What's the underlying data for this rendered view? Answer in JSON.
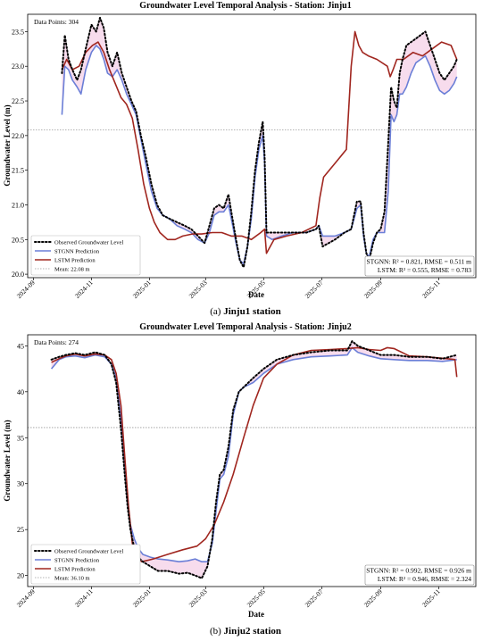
{
  "colors": {
    "observed": "#000000",
    "stgnn": "#6b7fd7",
    "lstm": "#a0261f",
    "mean": "#9a9a9a",
    "shade": "#f4cde6"
  },
  "chart_data": [
    {
      "type": "line",
      "title": "Groundwater Level Temporal Analysis - Station: Jinju1",
      "xlabel": "Date",
      "ylabel": "Groundwater Level (m)",
      "caption_letter": "(a)",
      "caption_text": "Jinju1 station",
      "data_points_label": "Data Points: 304",
      "xlim": [
        "2024-08-26",
        "2025-12-10"
      ],
      "ylim": [
        19.95,
        23.75
      ],
      "x_ticks": [
        "2024-09",
        "2024-11",
        "2025-01",
        "2025-03",
        "2025-05",
        "2025-07",
        "2025-09",
        "2025-11"
      ],
      "y_ticks": [
        20.0,
        20.5,
        21.0,
        21.5,
        22.0,
        22.5,
        23.0,
        23.5
      ],
      "y_tick_labels": [
        "20.0",
        "20.5",
        "21.0",
        "21.5",
        "22.0",
        "22.5",
        "23.0",
        "23.5"
      ],
      "mean": 22.08,
      "legend_position": "lower-left",
      "legend": [
        "Observed Groundwater Level",
        "STGNN Prediction",
        "LSTM Prediction",
        "Mean: 22.08 m"
      ],
      "metrics": [
        "STGNN: R² = 0.821, RMSE = 0.511 m",
        "LSTM: R² = 0.555, RMSE = 0.783"
      ],
      "series": [
        {
          "name": "Observed Groundwater Level",
          "x": [
            "2024-10-01",
            "2024-10-04",
            "2024-10-08",
            "2024-10-12",
            "2024-10-17",
            "2024-10-21",
            "2024-10-26",
            "2024-11-01",
            "2024-11-06",
            "2024-11-10",
            "2024-11-14",
            "2024-11-18",
            "2024-11-23",
            "2024-11-28",
            "2024-12-03",
            "2024-12-08",
            "2024-12-13",
            "2024-12-18",
            "2024-12-23",
            "2024-12-28",
            "2025-01-03",
            "2025-01-09",
            "2025-01-15",
            "2025-01-22",
            "2025-01-30",
            "2025-02-07",
            "2025-02-14",
            "2025-02-21",
            "2025-02-28",
            "2025-03-05",
            "2025-03-10",
            "2025-03-15",
            "2025-03-20",
            "2025-03-25",
            "2025-03-28",
            "2025-04-02",
            "2025-04-06",
            "2025-04-10",
            "2025-04-14",
            "2025-04-18",
            "2025-04-22",
            "2025-04-26",
            "2025-04-30",
            "2025-05-02",
            "2025-05-04",
            "2025-05-10",
            "2025-05-20",
            "2025-06-01",
            "2025-06-15",
            "2025-06-25",
            "2025-06-28",
            "2025-07-02",
            "2025-07-15",
            "2025-07-25",
            "2025-08-01",
            "2025-08-07",
            "2025-08-11",
            "2025-08-14",
            "2025-08-17",
            "2025-08-20",
            "2025-08-24",
            "2025-08-28",
            "2025-09-01",
            "2025-09-05",
            "2025-09-09",
            "2025-09-12",
            "2025-09-15",
            "2025-09-18",
            "2025-09-21",
            "2025-09-24",
            "2025-09-28",
            "2025-10-03",
            "2025-10-08",
            "2025-10-13",
            "2025-10-18",
            "2025-10-23",
            "2025-10-28",
            "2025-11-02",
            "2025-11-07",
            "2025-11-12",
            "2025-11-17",
            "2025-11-20"
          ],
          "values": [
            22.9,
            23.45,
            23.1,
            22.95,
            22.8,
            22.95,
            23.25,
            23.6,
            23.5,
            23.7,
            23.55,
            23.2,
            23.0,
            23.2,
            22.9,
            22.7,
            22.5,
            22.35,
            22.0,
            21.7,
            21.3,
            21.0,
            20.85,
            20.8,
            20.75,
            20.7,
            20.65,
            20.55,
            20.45,
            20.7,
            20.95,
            21.0,
            20.95,
            21.15,
            20.9,
            20.5,
            20.2,
            20.1,
            20.4,
            20.9,
            21.5,
            21.9,
            22.2,
            21.7,
            20.6,
            20.6,
            20.6,
            20.6,
            20.6,
            20.65,
            20.7,
            20.4,
            20.5,
            20.6,
            20.65,
            21.05,
            21.05,
            20.6,
            20.3,
            20.2,
            20.45,
            20.6,
            20.65,
            20.9,
            21.9,
            22.7,
            22.5,
            22.4,
            22.9,
            23.1,
            23.3,
            23.35,
            23.4,
            23.45,
            23.5,
            23.3,
            23.1,
            22.9,
            22.8,
            22.9,
            23.0,
            23.1
          ]
        },
        {
          "name": "STGNN Prediction",
          "x": [
            "2024-10-01",
            "2024-10-04",
            "2024-10-08",
            "2024-10-12",
            "2024-10-17",
            "2024-10-21",
            "2024-10-26",
            "2024-11-01",
            "2024-11-06",
            "2024-11-10",
            "2024-11-14",
            "2024-11-18",
            "2024-11-23",
            "2024-11-28",
            "2024-12-03",
            "2024-12-08",
            "2024-12-13",
            "2024-12-18",
            "2024-12-23",
            "2024-12-28",
            "2025-01-03",
            "2025-01-09",
            "2025-01-15",
            "2025-01-22",
            "2025-01-30",
            "2025-02-07",
            "2025-02-14",
            "2025-02-21",
            "2025-02-28",
            "2025-03-05",
            "2025-03-10",
            "2025-03-15",
            "2025-03-20",
            "2025-03-25",
            "2025-03-28",
            "2025-04-02",
            "2025-04-06",
            "2025-04-10",
            "2025-04-14",
            "2025-04-18",
            "2025-04-22",
            "2025-04-26",
            "2025-04-30",
            "2025-05-02",
            "2025-05-04",
            "2025-05-10",
            "2025-05-20",
            "2025-06-01",
            "2025-06-15",
            "2025-06-25",
            "2025-06-28",
            "2025-07-02",
            "2025-07-15",
            "2025-07-25",
            "2025-08-01",
            "2025-08-07",
            "2025-08-11",
            "2025-08-14",
            "2025-08-17",
            "2025-08-20",
            "2025-08-24",
            "2025-08-28",
            "2025-09-01",
            "2025-09-05",
            "2025-09-09",
            "2025-09-12",
            "2025-09-15",
            "2025-09-18",
            "2025-09-21",
            "2025-09-24",
            "2025-09-28",
            "2025-10-03",
            "2025-10-08",
            "2025-10-13",
            "2025-10-18",
            "2025-10-23",
            "2025-10-28",
            "2025-11-02",
            "2025-11-07",
            "2025-11-12",
            "2025-11-17",
            "2025-11-20"
          ],
          "values": [
            22.3,
            23.0,
            22.95,
            22.8,
            22.7,
            22.6,
            22.95,
            23.2,
            23.3,
            23.25,
            23.1,
            22.9,
            22.85,
            22.95,
            22.8,
            22.6,
            22.45,
            22.3,
            21.95,
            21.6,
            21.2,
            20.95,
            20.85,
            20.8,
            20.7,
            20.65,
            20.6,
            20.5,
            20.45,
            20.6,
            20.85,
            20.9,
            20.9,
            21.0,
            20.8,
            20.45,
            20.2,
            20.15,
            20.4,
            20.8,
            21.4,
            21.8,
            22.0,
            21.6,
            20.55,
            20.5,
            20.55,
            20.6,
            20.6,
            20.65,
            20.7,
            20.55,
            20.55,
            20.6,
            20.65,
            20.95,
            21.0,
            20.55,
            20.3,
            20.25,
            20.5,
            20.6,
            20.6,
            20.6,
            21.2,
            22.3,
            22.2,
            22.3,
            22.6,
            22.6,
            22.7,
            22.9,
            23.05,
            23.1,
            23.15,
            23.0,
            22.8,
            22.65,
            22.6,
            22.65,
            22.75,
            22.85
          ]
        },
        {
          "name": "LSTM Prediction",
          "x": [
            "2024-10-01",
            "2024-10-06",
            "2024-10-12",
            "2024-10-19",
            "2024-10-26",
            "2024-11-02",
            "2024-11-08",
            "2024-11-14",
            "2024-11-20",
            "2024-11-26",
            "2024-12-02",
            "2024-12-08",
            "2024-12-14",
            "2024-12-20",
            "2024-12-26",
            "2025-01-01",
            "2025-01-06",
            "2025-01-12",
            "2025-01-20",
            "2025-01-28",
            "2025-02-05",
            "2025-02-15",
            "2025-02-25",
            "2025-03-08",
            "2025-03-18",
            "2025-03-28",
            "2025-04-08",
            "2025-04-18",
            "2025-04-28",
            "2025-05-02",
            "2025-05-04",
            "2025-05-12",
            "2025-05-25",
            "2025-06-10",
            "2025-06-25",
            "2025-06-29",
            "2025-07-03",
            "2025-07-15",
            "2025-07-27",
            "2025-08-01",
            "2025-08-05",
            "2025-08-09",
            "2025-08-13",
            "2025-08-19",
            "2025-08-28",
            "2025-09-08",
            "2025-09-11",
            "2025-09-14",
            "2025-09-18",
            "2025-09-25",
            "2025-10-05",
            "2025-10-15",
            "2025-10-25",
            "2025-11-04",
            "2025-11-14",
            "2025-11-20"
          ],
          "values": [
            22.95,
            23.1,
            22.95,
            23.0,
            23.2,
            23.3,
            23.35,
            23.2,
            22.95,
            22.75,
            22.55,
            22.45,
            22.25,
            21.8,
            21.3,
            20.95,
            20.75,
            20.6,
            20.5,
            20.5,
            20.55,
            20.58,
            20.58,
            20.6,
            20.6,
            20.55,
            20.55,
            20.5,
            20.6,
            20.65,
            20.3,
            20.5,
            20.55,
            20.6,
            20.7,
            21.1,
            21.4,
            21.6,
            21.8,
            23.0,
            23.5,
            23.3,
            23.2,
            23.15,
            23.1,
            23.0,
            22.85,
            22.95,
            23.1,
            23.1,
            23.2,
            23.15,
            23.25,
            23.35,
            23.3,
            23.1
          ]
        }
      ]
    },
    {
      "type": "line",
      "title": "Groundwater Level Temporal Analysis - Station: Jinju2",
      "xlabel": "Date",
      "ylabel": "Groundwater Level (m)",
      "caption_letter": "(b)",
      "caption_text": "Jinju2 station",
      "data_points_label": "Data Points: 274",
      "xlim": [
        "2024-08-26",
        "2025-12-10"
      ],
      "ylim": [
        18.8,
        46.2
      ],
      "x_ticks": [
        "2024-09",
        "2024-11",
        "2025-01",
        "2025-03",
        "2025-05",
        "2025-07",
        "2025-09",
        "2025-11"
      ],
      "y_ticks": [
        20,
        25,
        30,
        35,
        40,
        45
      ],
      "y_tick_labels": [
        "20",
        "25",
        "30",
        "35",
        "40",
        "45"
      ],
      "mean": 36.1,
      "legend_position": "lower-left",
      "legend": [
        "Observed Groundwater Level",
        "STGNN Prediction",
        "LSTM Prediction",
        "Mean: 36.10 m"
      ],
      "metrics": [
        "STGNN: R² = 0.992, RMSE = 0.926 m",
        "LSTM: R² = 0.946, RMSE = 2.324"
      ],
      "series": [
        {
          "name": "Observed Groundwater Level",
          "x": [
            "2024-09-20",
            "2024-09-28",
            "2024-10-05",
            "2024-10-15",
            "2024-10-25",
            "2024-11-05",
            "2024-11-15",
            "2024-11-22",
            "2024-11-27",
            "2024-12-02",
            "2024-12-06",
            "2024-12-09",
            "2024-12-12",
            "2024-12-16",
            "2024-12-20",
            "2024-12-25",
            "2025-01-02",
            "2025-01-10",
            "2025-01-20",
            "2025-02-01",
            "2025-02-10",
            "2025-02-18",
            "2025-02-25",
            "2025-03-03",
            "2025-03-08",
            "2025-03-12",
            "2025-03-16",
            "2025-03-20",
            "2025-03-25",
            "2025-03-30",
            "2025-04-05",
            "2025-04-10",
            "2025-04-20",
            "2025-05-01",
            "2025-05-15",
            "2025-06-01",
            "2025-06-20",
            "2025-07-10",
            "2025-07-28",
            "2025-08-02",
            "2025-08-08",
            "2025-08-20",
            "2025-09-01",
            "2025-09-15",
            "2025-10-01",
            "2025-10-20",
            "2025-11-05",
            "2025-11-20"
          ],
          "values": [
            43.5,
            43.8,
            44.0,
            44.2,
            44.0,
            44.3,
            44.0,
            43.0,
            41.0,
            36.0,
            31.0,
            27.5,
            25.0,
            23.0,
            22.0,
            21.5,
            21.0,
            20.5,
            20.5,
            20.2,
            20.3,
            20.0,
            19.7,
            21.0,
            24.0,
            28.0,
            31.0,
            31.5,
            34.0,
            38.0,
            40.0,
            40.5,
            41.5,
            42.5,
            43.5,
            44.0,
            44.3,
            44.5,
            44.5,
            45.5,
            45.0,
            44.5,
            44.0,
            44.0,
            43.8,
            43.8,
            43.6,
            44.0
          ]
        },
        {
          "name": "STGNN Prediction",
          "x": [
            "2024-09-20",
            "2024-09-28",
            "2024-10-05",
            "2024-10-15",
            "2024-10-25",
            "2024-11-05",
            "2024-11-15",
            "2024-11-22",
            "2024-11-27",
            "2024-12-02",
            "2024-12-06",
            "2024-12-09",
            "2024-12-12",
            "2024-12-16",
            "2024-12-20",
            "2024-12-25",
            "2025-01-02",
            "2025-01-10",
            "2025-01-20",
            "2025-02-01",
            "2025-02-10",
            "2025-02-18",
            "2025-02-25",
            "2025-03-03",
            "2025-03-08",
            "2025-03-12",
            "2025-03-16",
            "2025-03-20",
            "2025-03-25",
            "2025-03-30",
            "2025-04-05",
            "2025-04-10",
            "2025-04-20",
            "2025-05-01",
            "2025-05-15",
            "2025-06-01",
            "2025-06-20",
            "2025-07-10",
            "2025-07-28",
            "2025-08-02",
            "2025-08-08",
            "2025-08-20",
            "2025-09-01",
            "2025-09-15",
            "2025-10-01",
            "2025-10-20",
            "2025-11-05",
            "2025-11-20"
          ],
          "values": [
            42.5,
            43.5,
            43.8,
            43.9,
            43.7,
            44.0,
            43.8,
            43.0,
            41.5,
            37.0,
            32.0,
            28.0,
            25.5,
            24.0,
            23.0,
            22.3,
            22.0,
            21.8,
            21.7,
            21.5,
            21.6,
            21.8,
            21.5,
            21.5,
            23.5,
            27.0,
            30.5,
            31.0,
            33.0,
            37.5,
            40.0,
            40.5,
            41.0,
            42.0,
            43.0,
            43.5,
            43.8,
            43.9,
            44.0,
            44.8,
            44.3,
            43.9,
            43.6,
            43.5,
            43.4,
            43.4,
            43.3,
            43.5
          ]
        },
        {
          "name": "LSTM Prediction",
          "x": [
            "2024-09-20",
            "2024-09-28",
            "2024-10-05",
            "2024-10-15",
            "2024-10-25",
            "2024-11-05",
            "2024-11-15",
            "2024-11-22",
            "2024-11-27",
            "2024-12-02",
            "2024-12-06",
            "2024-12-10",
            "2024-12-14",
            "2024-12-18",
            "2024-12-24",
            "2025-01-05",
            "2025-01-20",
            "2025-02-05",
            "2025-02-20",
            "2025-03-01",
            "2025-03-10",
            "2025-03-20",
            "2025-03-30",
            "2025-04-10",
            "2025-04-20",
            "2025-05-01",
            "2025-05-15",
            "2025-06-01",
            "2025-06-20",
            "2025-07-10",
            "2025-07-28",
            "2025-08-08",
            "2025-08-20",
            "2025-09-01",
            "2025-09-08",
            "2025-09-15",
            "2025-10-01",
            "2025-10-20",
            "2025-11-10",
            "2025-11-18",
            "2025-11-20"
          ],
          "values": [
            43.2,
            43.6,
            43.9,
            44.1,
            43.9,
            44.1,
            44.0,
            43.5,
            42.0,
            38.5,
            33.0,
            27.5,
            23.5,
            22.0,
            21.5,
            21.8,
            22.3,
            22.8,
            23.2,
            24.0,
            25.5,
            28.0,
            31.0,
            35.0,
            38.5,
            41.5,
            43.0,
            44.0,
            44.5,
            44.6,
            44.7,
            44.8,
            44.6,
            44.5,
            44.8,
            44.7,
            43.9,
            43.8,
            43.6,
            43.5,
            41.6
          ]
        }
      ]
    }
  ]
}
